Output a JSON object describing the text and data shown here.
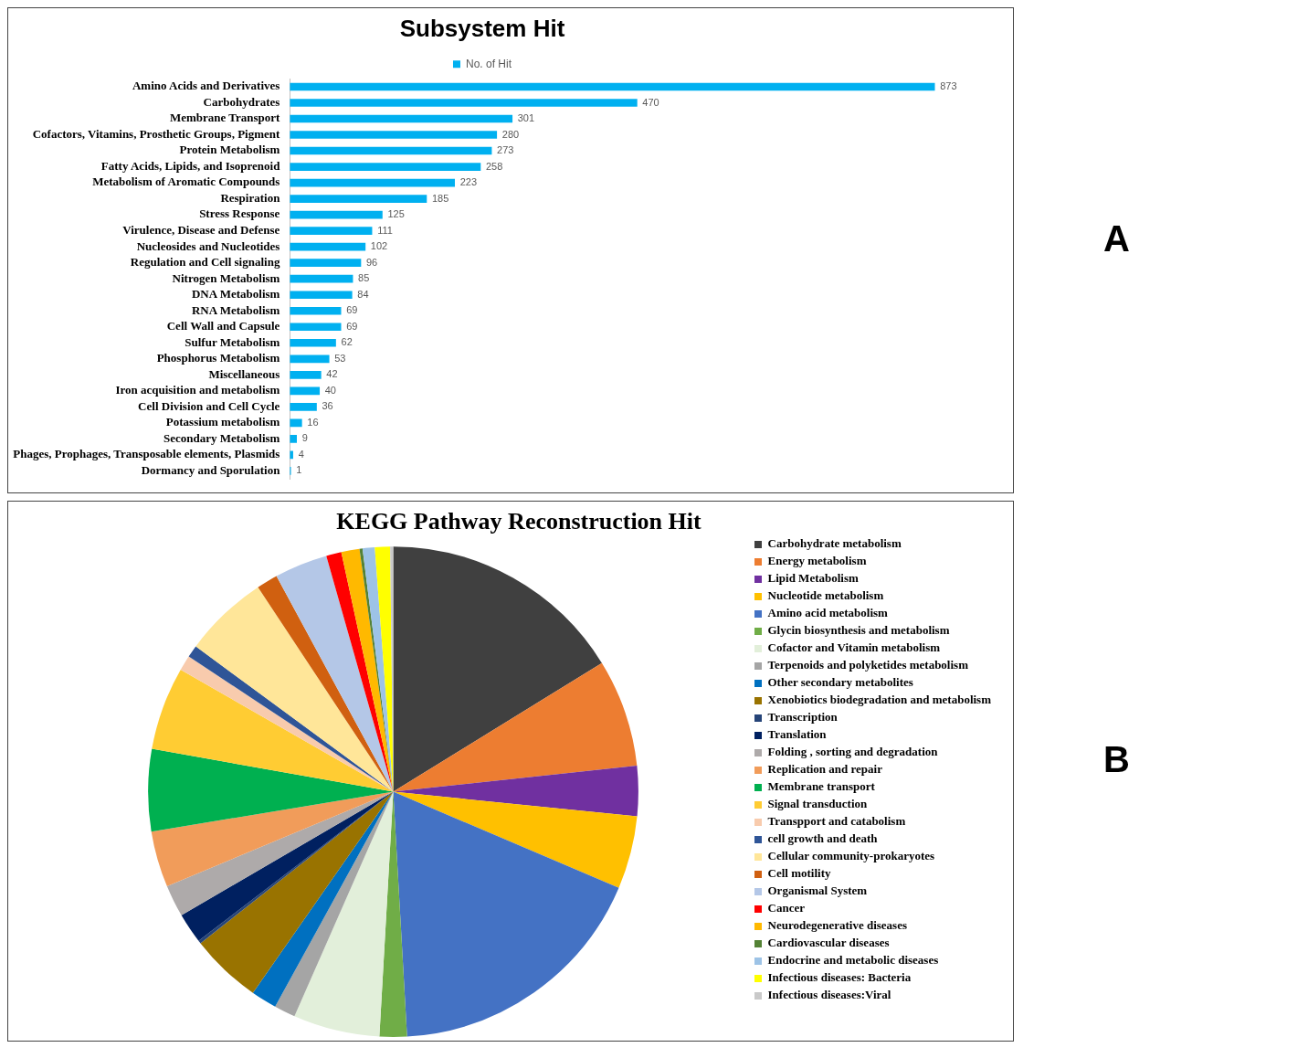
{
  "chart_data": [
    {
      "type": "bar",
      "orientation": "horizontal",
      "title": "Subsystem Hit",
      "legend": "top",
      "data_labels": true,
      "annotations": [
        "A"
      ],
      "categories": [
        "Amino Acids and Derivatives",
        "Carbohydrates",
        "Membrane Transport",
        "Cofactors, Vitamins, Prosthetic Groups, Pigment",
        "Protein Metabolism",
        "Fatty Acids, Lipids, and Isoprenoid",
        "Metabolism of Aromatic Compounds",
        "Respiration",
        "Stress Response",
        "Virulence, Disease and Defense",
        "Nucleosides and Nucleotides",
        "Regulation and Cell signaling",
        "Nitrogen Metabolism",
        "DNA Metabolism",
        "RNA Metabolism",
        "Cell Wall and Capsule",
        "Sulfur Metabolism",
        "Phosphorus Metabolism",
        "Miscellaneous",
        "Iron acquisition and metabolism",
        "Cell Division and Cell Cycle",
        "Potassium metabolism",
        "Secondary Metabolism",
        "Phages, Prophages, Transposable elements, Plasmids",
        "Dormancy and Sporulation"
      ],
      "series": [
        {
          "name": "No. of Hit",
          "color": "#00b0f0",
          "values": [
            873,
            470,
            301,
            280,
            273,
            258,
            223,
            185,
            125,
            111,
            102,
            96,
            85,
            84,
            69,
            69,
            62,
            53,
            42,
            40,
            36,
            16,
            9,
            4,
            1
          ]
        }
      ]
    },
    {
      "type": "pie",
      "title": "KEGG Pathway Reconstruction Hit",
      "legend": "right",
      "annotations": [
        "B"
      ],
      "categories": [
        "Carbohydrate metabolism",
        "Energy metabolism",
        "Lipid Metabolism",
        "Nucleotide metabolism",
        "Amino acid metabolism",
        "Glycin biosynthesis and metabolism",
        "Cofactor and Vitamin metabolism",
        "Terpenoids and polyketides metabolism",
        "Other secondary metabolites",
        "Xenobiotics biodegradation and metabolism",
        "Transcription",
        "Translation",
        "Folding , sorting and degradation",
        "Replication and repair",
        "Membrane transport",
        "Signal transduction",
        "Transpport and catabolism",
        "cell growth and death",
        "Cellular community-prokaryotes",
        "Cell motility",
        "Organismal System",
        "Cancer",
        "Neurodegenerative diseases",
        "Cardiovascular diseases",
        "Endocrine and metabolic diseases",
        "Infectious diseases: Bacteria",
        "Infectious diseases:Viral"
      ],
      "values": [
        16.2,
        7.1,
        3.3,
        4.8,
        17.7,
        1.8,
        5.7,
        1.4,
        1.7,
        4.7,
        0.2,
        2.0,
        2.1,
        3.7,
        5.4,
        5.5,
        1.0,
        0.8,
        5.6,
        1.4,
        3.5,
        1.0,
        1.2,
        0.2,
        0.8,
        1.0,
        0.2
      ],
      "colors": [
        "#404040",
        "#ed7d31",
        "#7030a0",
        "#ffc000",
        "#4472c4",
        "#70ad47",
        "#e2efda",
        "#a5a5a5",
        "#0070c0",
        "#997300",
        "#264478",
        "#002060",
        "#aeaaaa",
        "#f19c5a",
        "#00b050",
        "#ffcc33",
        "#f8cbad",
        "#2f5597",
        "#ffe699",
        "#d06010",
        "#b4c7e7",
        "#ff0000",
        "#ffb900",
        "#548235",
        "#9dc3e6",
        "#ffff00",
        "#c9c9c9"
      ]
    }
  ]
}
